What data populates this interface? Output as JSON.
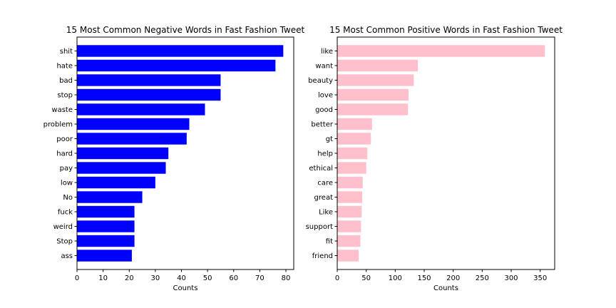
{
  "chart_data": [
    {
      "type": "bar",
      "orientation": "horizontal",
      "title": "15 Most Common Negative Words in Fast Fashion Tweet",
      "xlabel": "Counts",
      "ylabel": "",
      "categories": [
        "shit",
        "hate",
        "bad",
        "stop",
        "waste",
        "problem",
        "poor",
        "hard",
        "pay",
        "low",
        "No",
        "fuck",
        "weird",
        "Stop",
        "ass"
      ],
      "values": [
        79,
        76,
        55,
        55,
        49,
        43,
        42,
        35,
        34,
        30,
        25,
        22,
        22,
        22,
        21
      ],
      "xlim": [
        0,
        83
      ],
      "xticks": [
        0,
        10,
        20,
        30,
        40,
        50,
        60,
        70,
        80
      ],
      "color": "#0000ff",
      "grid": false
    },
    {
      "type": "bar",
      "orientation": "horizontal",
      "title": "15 Most Common Positive Words in Fast Fashion Tweet",
      "xlabel": "Counts",
      "ylabel": "",
      "categories": [
        "like",
        "want",
        "beauty",
        "love",
        "good",
        "better",
        "gt",
        "help",
        "ethical",
        "care",
        "great",
        "Like",
        "support",
        "fit",
        "friend"
      ],
      "values": [
        358,
        139,
        132,
        123,
        122,
        60,
        58,
        52,
        50,
        44,
        43,
        42,
        41,
        40,
        37
      ],
      "xlim": [
        0,
        375
      ],
      "xticks": [
        0,
        50,
        100,
        150,
        200,
        250,
        300,
        350
      ],
      "color": "#ffc0cb",
      "grid": false
    }
  ]
}
